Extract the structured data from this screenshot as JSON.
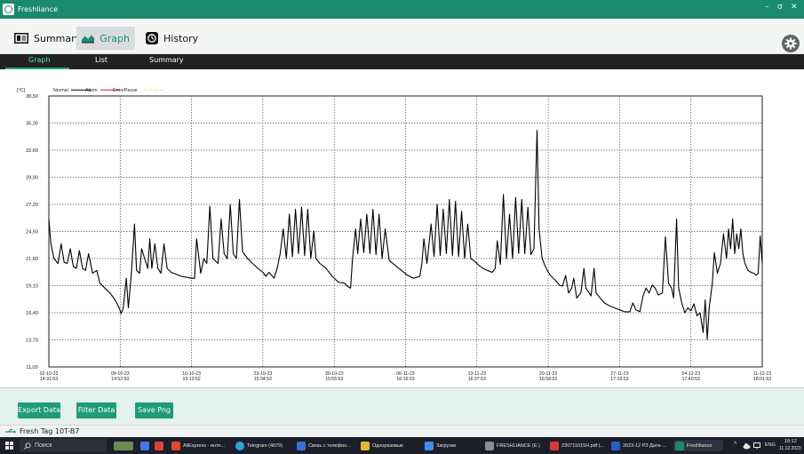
{
  "window": {
    "title": "Freshliance",
    "min_glyph": "–",
    "restore_glyph": "ơ",
    "close_glyph": "✕"
  },
  "toolbar": {
    "tabs": [
      {
        "label": "Summary",
        "icon": "summary-icon"
      },
      {
        "label": "Graph",
        "icon": "graph-icon",
        "active": true
      },
      {
        "label": "History",
        "icon": "history-icon"
      }
    ],
    "settings_icon": "gear-icon"
  },
  "subtabs": {
    "graph": "Graph",
    "list": "List",
    "summary": "Summary",
    "active": "Graph"
  },
  "chart_data": {
    "type": "line",
    "unit_label": "[°C]",
    "legend": [
      {
        "label": "Normal",
        "color": "#000000"
      },
      {
        "label": "Alarm",
        "color": "#e02020"
      },
      {
        "label": "Error/Pause",
        "color": "#f0d060"
      }
    ],
    "ylim": [
      11.0,
      38.5
    ],
    "y_ticks": [
      "38,50",
      "35,30",
      "32,60",
      "29,90",
      "27,20",
      "24,50",
      "21,80",
      "19,10",
      "16,40",
      "13,70",
      "11,00"
    ],
    "x_ticks": [
      [
        "02-10-23",
        "14:31:53"
      ],
      [
        "09-10-23",
        "14:52:53"
      ],
      [
        "16-10-23",
        "15:13:52"
      ],
      [
        "23-10-23",
        "15:34:52"
      ],
      [
        "30-10-23",
        "15:55:53"
      ],
      [
        "06-11-23",
        "16:16:53"
      ],
      [
        "13-11-23",
        "16:37:53"
      ],
      [
        "20-11-23",
        "16:58:53"
      ],
      [
        "27-11-23",
        "17:19:53"
      ],
      [
        "04-12-23",
        "17:40:53"
      ],
      [
        "11-12-23",
        "18:01:53"
      ]
    ],
    "x_range_days": [
      0,
      70
    ],
    "grid": true,
    "series": [
      {
        "name": "Normal",
        "color": "#000000",
        "points": [
          [
            0,
            26.0
          ],
          [
            0.2,
            23.5
          ],
          [
            0.5,
            22.0
          ],
          [
            0.9,
            21.5
          ],
          [
            1.2,
            23.5
          ],
          [
            1.5,
            21.6
          ],
          [
            1.8,
            21.5
          ],
          [
            2.1,
            23.0
          ],
          [
            2.4,
            21.2
          ],
          [
            2.7,
            21.0
          ],
          [
            3.0,
            22.8
          ],
          [
            3.3,
            21.0
          ],
          [
            3.6,
            20.8
          ],
          [
            3.9,
            22.5
          ],
          [
            4.3,
            20.5
          ],
          [
            4.7,
            20.8
          ],
          [
            5.0,
            19.5
          ],
          [
            5.5,
            19.0
          ],
          [
            6.0,
            18.5
          ],
          [
            6.5,
            17.8
          ],
          [
            6.9,
            17.0
          ],
          [
            7.1,
            16.4
          ],
          [
            7.3,
            17.0
          ],
          [
            7.6,
            20.0
          ],
          [
            7.8,
            17.0
          ],
          [
            8.1,
            20.5
          ],
          [
            8.4,
            25.5
          ],
          [
            8.6,
            20.8
          ],
          [
            8.9,
            20.5
          ],
          [
            9.1,
            23.0
          ],
          [
            9.4,
            22.0
          ],
          [
            9.7,
            21.0
          ],
          [
            9.9,
            24.0
          ],
          [
            10.1,
            21.0
          ],
          [
            10.4,
            23.5
          ],
          [
            10.7,
            21.0
          ],
          [
            11.0,
            20.5
          ],
          [
            11.3,
            23.5
          ],
          [
            11.6,
            21.0
          ],
          [
            12.0,
            20.6
          ],
          [
            13.0,
            20.2
          ],
          [
            14.0,
            20.0
          ],
          [
            14.3,
            20.0
          ],
          [
            14.5,
            24.0
          ],
          [
            14.9,
            20.5
          ],
          [
            15.2,
            22.0
          ],
          [
            15.5,
            21.5
          ],
          [
            15.8,
            27.3
          ],
          [
            16.1,
            22.0
          ],
          [
            16.6,
            21.5
          ],
          [
            16.9,
            26.0
          ],
          [
            17.2,
            22.5
          ],
          [
            17.5,
            22.0
          ],
          [
            17.8,
            27.5
          ],
          [
            18.1,
            22.5
          ],
          [
            18.4,
            22.0
          ],
          [
            18.7,
            28.0
          ],
          [
            19.0,
            22.7
          ],
          [
            19.5,
            22.0
          ],
          [
            20.0,
            21.5
          ],
          [
            20.5,
            21.0
          ],
          [
            21.0,
            20.6
          ],
          [
            21.3,
            20.2
          ],
          [
            21.6,
            20.6
          ],
          [
            22.1,
            20.0
          ],
          [
            22.4,
            21.0
          ],
          [
            22.7,
            22.5
          ],
          [
            23.0,
            25.0
          ],
          [
            23.3,
            22.0
          ],
          [
            23.6,
            26.5
          ],
          [
            23.9,
            22.2
          ],
          [
            24.2,
            27.0
          ],
          [
            24.5,
            22.5
          ],
          [
            24.8,
            27.2
          ],
          [
            25.1,
            22.3
          ],
          [
            25.4,
            27.0
          ],
          [
            25.7,
            22.0
          ],
          [
            26.0,
            24.8
          ],
          [
            26.2,
            22.0
          ],
          [
            26.6,
            21.5
          ],
          [
            27.2,
            21.0
          ],
          [
            27.8,
            20.2
          ],
          [
            28.4,
            19.6
          ],
          [
            29.0,
            19.5
          ],
          [
            29.3,
            19.2
          ],
          [
            29.6,
            19.0
          ],
          [
            29.8,
            22.0
          ],
          [
            30.1,
            25.0
          ],
          [
            30.3,
            22.5
          ],
          [
            30.6,
            26.0
          ],
          [
            30.9,
            22.6
          ],
          [
            31.2,
            26.5
          ],
          [
            31.5,
            22.5
          ],
          [
            31.8,
            27.0
          ],
          [
            32.1,
            22.4
          ],
          [
            32.4,
            26.5
          ],
          [
            32.7,
            22.0
          ],
          [
            33.0,
            25.0
          ],
          [
            33.4,
            21.8
          ],
          [
            34.0,
            21.3
          ],
          [
            34.6,
            20.8
          ],
          [
            35.2,
            20.3
          ],
          [
            35.8,
            20.0
          ],
          [
            36.4,
            20.2
          ],
          [
            36.6,
            21.5
          ],
          [
            36.8,
            24.0
          ],
          [
            37.1,
            21.5
          ],
          [
            37.5,
            25.5
          ],
          [
            37.8,
            22.2
          ],
          [
            38.1,
            27.5
          ],
          [
            38.4,
            22.3
          ],
          [
            38.7,
            27.0
          ],
          [
            39.0,
            22.5
          ],
          [
            39.3,
            28.0
          ],
          [
            39.6,
            22.3
          ],
          [
            39.9,
            27.8
          ],
          [
            40.2,
            22.2
          ],
          [
            40.5,
            26.8
          ],
          [
            40.8,
            22.0
          ],
          [
            41.1,
            25.5
          ],
          [
            41.4,
            22.0
          ],
          [
            41.8,
            21.7
          ],
          [
            42.2,
            21.3
          ],
          [
            42.6,
            21.0
          ],
          [
            43.0,
            20.8
          ],
          [
            43.5,
            20.6
          ],
          [
            43.8,
            21.0
          ],
          [
            44.0,
            23.8
          ],
          [
            44.3,
            21.4
          ],
          [
            44.6,
            28.5
          ],
          [
            44.9,
            22.0
          ],
          [
            45.2,
            26.5
          ],
          [
            45.5,
            22.0
          ],
          [
            45.8,
            28.2
          ],
          [
            46.1,
            22.5
          ],
          [
            46.4,
            28.0
          ],
          [
            46.7,
            22.5
          ],
          [
            47.0,
            27.2
          ],
          [
            47.3,
            22.4
          ],
          [
            47.6,
            23.0
          ],
          [
            47.9,
            35.0
          ],
          [
            48.1,
            25.0
          ],
          [
            48.4,
            22.0
          ],
          [
            48.8,
            21.0
          ],
          [
            49.2,
            20.3
          ],
          [
            49.7,
            19.8
          ],
          [
            50.1,
            19.3
          ],
          [
            50.4,
            19.2
          ],
          [
            50.7,
            20.3
          ],
          [
            51.0,
            18.5
          ],
          [
            51.3,
            19.0
          ],
          [
            51.5,
            20.0
          ],
          [
            51.8,
            18.0
          ],
          [
            52.2,
            18.5
          ],
          [
            52.5,
            21.0
          ],
          [
            52.7,
            19.0
          ],
          [
            53.2,
            18.2
          ],
          [
            53.5,
            21.0
          ],
          [
            53.7,
            18.5
          ],
          [
            54.1,
            18.0
          ],
          [
            54.5,
            17.5
          ],
          [
            55.0,
            17.2
          ],
          [
            55.5,
            17.0
          ],
          [
            56.0,
            16.8
          ],
          [
            56.5,
            16.6
          ],
          [
            57.0,
            16.6
          ],
          [
            57.3,
            17.5
          ],
          [
            57.6,
            16.8
          ],
          [
            58.0,
            16.6
          ],
          [
            58.3,
            18.2
          ],
          [
            58.6,
            19.0
          ],
          [
            58.9,
            18.5
          ],
          [
            59.2,
            19.3
          ],
          [
            59.5,
            19.0
          ],
          [
            59.8,
            18.3
          ],
          [
            60.2,
            18.5
          ],
          [
            60.5,
            24.2
          ],
          [
            60.8,
            19.5
          ],
          [
            61.1,
            19.0
          ],
          [
            61.3,
            18.0
          ],
          [
            61.6,
            26.0
          ],
          [
            61.8,
            19.0
          ],
          [
            62.1,
            17.5
          ],
          [
            62.4,
            16.5
          ],
          [
            62.7,
            17.0
          ],
          [
            63.0,
            16.7
          ],
          [
            63.3,
            17.4
          ],
          [
            63.6,
            16.2
          ],
          [
            63.9,
            16.5
          ],
          [
            64.2,
            14.5
          ],
          [
            64.4,
            17.8
          ],
          [
            64.6,
            13.8
          ],
          [
            64.8,
            17.0
          ],
          [
            65.1,
            19.5
          ],
          [
            65.3,
            22.6
          ],
          [
            65.6,
            20.5
          ],
          [
            65.9,
            21.5
          ],
          [
            66.2,
            24.5
          ],
          [
            66.5,
            22.0
          ],
          [
            66.7,
            25.0
          ],
          [
            66.9,
            23.0
          ],
          [
            67.1,
            26.0
          ],
          [
            67.3,
            22.5
          ],
          [
            67.5,
            24.5
          ],
          [
            67.7,
            23.0
          ],
          [
            67.9,
            25.0
          ],
          [
            68.1,
            22.5
          ],
          [
            68.3,
            21.5
          ],
          [
            68.6,
            20.8
          ],
          [
            68.9,
            20.6
          ],
          [
            69.2,
            20.5
          ],
          [
            69.4,
            20.3
          ],
          [
            69.6,
            20.5
          ],
          [
            69.8,
            24.3
          ],
          [
            70.0,
            21.5
          ]
        ]
      }
    ]
  },
  "buttons": {
    "export": "Export Data",
    "filter": "Filter Data",
    "save_png": "Save Png"
  },
  "status": {
    "device": "Fresh Tag 10T-B7"
  },
  "taskbar": {
    "search_placeholder": "Поиск",
    "items": [
      {
        "label": "AliExpress - инте...",
        "color": "#e34a2d"
      },
      {
        "label": "Telegram (4079)",
        "color": "#2aa3e0"
      },
      {
        "label": "Связь с телефон...",
        "color": "#3f6fd8"
      },
      {
        "label": "Одноразовые",
        "color": "#e5b531"
      },
      {
        "label": "Загрузки",
        "color": "#3f8df0"
      },
      {
        "label": "FRESHLIANCE (E:)",
        "color": "#8a8f9a"
      },
      {
        "label": "230711015H.pdf (...",
        "color": "#d63b3b"
      },
      {
        "label": "2023-12 РЗ Дата-...",
        "color": "#2b5cc7"
      },
      {
        "label": "Freshliance",
        "color": "#1a8a6e"
      }
    ],
    "tray_lang": "ENG",
    "clock_time": "18:12",
    "clock_date": "11.12.2023"
  }
}
